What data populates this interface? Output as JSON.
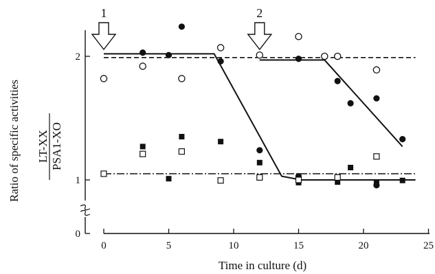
{
  "chart_data": {
    "type": "scatter",
    "xlabel": "Time in culture (d)",
    "ylabel": "Ratio of specific activities",
    "ylabel_fraction": {
      "numerator": "LT-XX",
      "denominator": "PSA1-XO"
    },
    "x_ticks": [
      "0",
      "5",
      "10",
      "15",
      "20",
      "25"
    ],
    "y_ticks": [
      "0",
      "1",
      "2"
    ],
    "xlim": [
      0,
      25
    ],
    "y_axis_broken": true,
    "grid": false,
    "annotations": [
      {
        "label": "1",
        "x": 0
      },
      {
        "label": "2",
        "x": 12
      }
    ],
    "series": [
      {
        "marker": "filled-circle",
        "points": [
          [
            3,
            2.03
          ],
          [
            5,
            2.01
          ],
          [
            6,
            2.24
          ],
          [
            9,
            1.96
          ],
          [
            12,
            1.24
          ],
          [
            15,
            1.03
          ],
          [
            15,
            1.98
          ],
          [
            18,
            1.8
          ],
          [
            19,
            1.62
          ],
          [
            21,
            1.66
          ],
          [
            21,
            0.9
          ],
          [
            23,
            1.33
          ]
        ]
      },
      {
        "marker": "open-circle",
        "points": [
          [
            0,
            1.82
          ],
          [
            3,
            1.92
          ],
          [
            6,
            1.82
          ],
          [
            9,
            2.07
          ],
          [
            12,
            2.01
          ],
          [
            15,
            2.16
          ],
          [
            17,
            2.0
          ],
          [
            18,
            2.0
          ],
          [
            21,
            1.89
          ]
        ]
      },
      {
        "marker": "filled-square",
        "points": [
          [
            3,
            1.27
          ],
          [
            5,
            1.01
          ],
          [
            6,
            1.35
          ],
          [
            9,
            1.31
          ],
          [
            12,
            1.14
          ],
          [
            15,
            0.95
          ],
          [
            18,
            0.96
          ],
          [
            19,
            1.1
          ],
          [
            21,
            0.95
          ],
          [
            23,
            0.99
          ]
        ]
      },
      {
        "marker": "open-square",
        "points": [
          [
            0,
            1.05
          ],
          [
            3,
            1.21
          ],
          [
            6,
            1.23
          ],
          [
            9,
            0.99
          ],
          [
            12,
            1.02
          ],
          [
            15,
            1.0
          ],
          [
            18,
            1.02
          ],
          [
            21,
            1.19
          ]
        ]
      }
    ],
    "lines": [
      {
        "style": "dashed",
        "points": [
          [
            0,
            1.99
          ],
          [
            24,
            1.99
          ]
        ]
      },
      {
        "style": "dash-dot",
        "points": [
          [
            0,
            1.05
          ],
          [
            24,
            1.05
          ]
        ]
      },
      {
        "style": "solid",
        "points": [
          [
            0,
            2.02
          ],
          [
            8.5,
            2.02
          ],
          [
            13.7,
            1.03
          ],
          [
            15.2,
            1.0
          ],
          [
            24,
            1.0
          ]
        ]
      },
      {
        "style": "solid",
        "points": [
          [
            12,
            1.97
          ],
          [
            17,
            1.97
          ],
          [
            23,
            1.27
          ]
        ]
      }
    ]
  }
}
